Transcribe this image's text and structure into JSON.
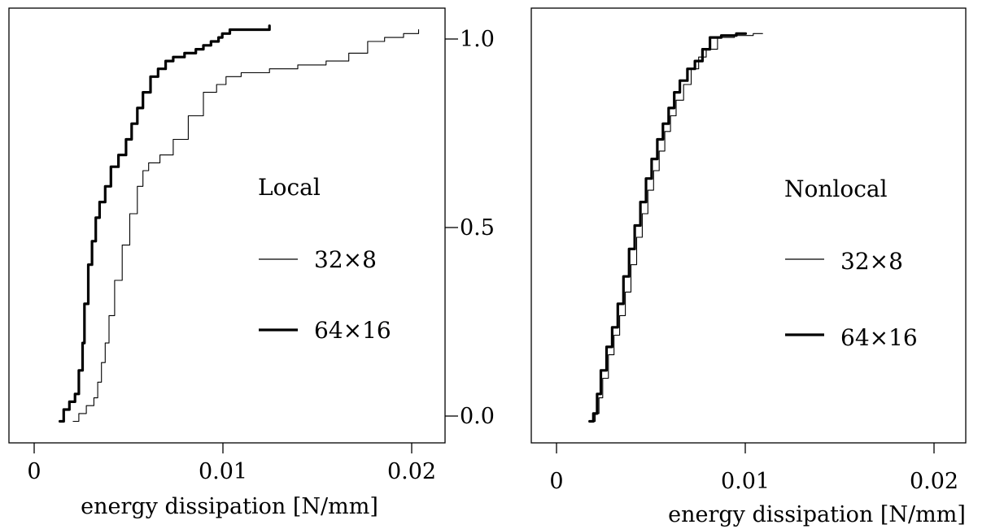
{
  "chart_data": [
    {
      "type": "line",
      "panel": "left",
      "xlabel": "energy dissipation [N/mm]",
      "ylabel": "",
      "xlim": [
        -0.0013,
        0.0218
      ],
      "ylim": [
        -0.055,
        1.055
      ],
      "xticks": [
        0,
        0.01,
        0.02
      ],
      "xtick_labels": [
        "0",
        "0.01",
        "0.02"
      ],
      "legend": {
        "title": "Local",
        "placement": "center-right"
      },
      "series": [
        {
          "name": "32×8",
          "style": "thin",
          "x": [
            0.0021,
            0.0024,
            0.0028,
            0.0032,
            0.0034,
            0.0036,
            0.0038,
            0.004,
            0.0043,
            0.0047,
            0.0051,
            0.0055,
            0.0058,
            0.0061,
            0.0067,
            0.0074,
            0.0082,
            0.009,
            0.0097,
            0.0102,
            0.011,
            0.0125,
            0.014,
            0.0155,
            0.0167,
            0.0177,
            0.0186,
            0.0196,
            0.0204
          ],
          "y": [
            0.0,
            0.02,
            0.04,
            0.06,
            0.1,
            0.15,
            0.2,
            0.27,
            0.36,
            0.45,
            0.53,
            0.6,
            0.64,
            0.66,
            0.68,
            0.72,
            0.78,
            0.84,
            0.86,
            0.88,
            0.89,
            0.9,
            0.91,
            0.92,
            0.94,
            0.97,
            0.98,
            0.99,
            1.0
          ]
        },
        {
          "name": "64×16",
          "style": "thick",
          "x": [
            0.0014,
            0.0016,
            0.0019,
            0.0022,
            0.0024,
            0.0026,
            0.0027,
            0.0029,
            0.0031,
            0.0033,
            0.0035,
            0.0038,
            0.0041,
            0.0045,
            0.0049,
            0.0052,
            0.0055,
            0.0058,
            0.0062,
            0.0066,
            0.007,
            0.0074,
            0.008,
            0.0086,
            0.009,
            0.0094,
            0.0098,
            0.01,
            0.0104,
            0.0113,
            0.0125
          ],
          "y": [
            0.0,
            0.03,
            0.05,
            0.07,
            0.13,
            0.2,
            0.3,
            0.4,
            0.46,
            0.52,
            0.56,
            0.6,
            0.65,
            0.68,
            0.72,
            0.76,
            0.8,
            0.84,
            0.88,
            0.9,
            0.92,
            0.93,
            0.94,
            0.95,
            0.96,
            0.97,
            0.98,
            0.99,
            1.0,
            1.0,
            1.01
          ]
        }
      ]
    },
    {
      "type": "line",
      "panel": "right",
      "xlabel": "energy dissipation [N/mm]",
      "ylabel": "",
      "xlim": [
        -0.0013,
        0.0218
      ],
      "ylim": [
        -0.055,
        1.055
      ],
      "xticks": [
        0,
        0.01,
        0.02
      ],
      "xtick_labels": [
        "0",
        "0.01",
        "0.02"
      ],
      "yticks": [
        0.0,
        0.5,
        1.0
      ],
      "ytick_labels": [
        "0.0",
        "0.5",
        "1.0"
      ],
      "legend": {
        "title": "Nonlocal",
        "placement": "center-right"
      },
      "series": [
        {
          "name": "32×8",
          "style": "thin",
          "x": [
            0.0019,
            0.0021,
            0.0023,
            0.0025,
            0.0028,
            0.0031,
            0.0034,
            0.0037,
            0.004,
            0.0043,
            0.0046,
            0.0049,
            0.0052,
            0.0055,
            0.0058,
            0.0061,
            0.0064,
            0.0068,
            0.0072,
            0.0076,
            0.008,
            0.0086,
            0.0095,
            0.0105,
            0.011
          ],
          "y": [
            0.0,
            0.02,
            0.06,
            0.11,
            0.17,
            0.22,
            0.27,
            0.33,
            0.4,
            0.47,
            0.53,
            0.59,
            0.64,
            0.69,
            0.74,
            0.78,
            0.82,
            0.86,
            0.9,
            0.93,
            0.95,
            0.98,
            0.985,
            0.99,
            0.99
          ]
        },
        {
          "name": "64×16",
          "style": "thick",
          "x": [
            0.0018,
            0.002,
            0.0022,
            0.0024,
            0.0027,
            0.003,
            0.0033,
            0.0036,
            0.0039,
            0.0042,
            0.0045,
            0.0048,
            0.0051,
            0.0054,
            0.0057,
            0.006,
            0.0063,
            0.0066,
            0.007,
            0.0074,
            0.0078,
            0.0082,
            0.0088,
            0.0096,
            0.0101
          ],
          "y": [
            0.0,
            0.02,
            0.07,
            0.13,
            0.19,
            0.24,
            0.3,
            0.37,
            0.44,
            0.5,
            0.56,
            0.62,
            0.67,
            0.72,
            0.76,
            0.8,
            0.84,
            0.87,
            0.9,
            0.92,
            0.95,
            0.98,
            0.985,
            0.99,
            0.99
          ]
        }
      ]
    }
  ]
}
